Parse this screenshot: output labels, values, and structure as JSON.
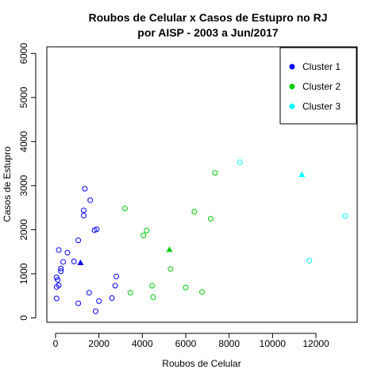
{
  "chart_data": {
    "type": "scatter",
    "title": [
      "Roubos de Celular x Casos de Estupro no RJ",
      "por AISP - 2003 a Jun/2017"
    ],
    "xlabel": "Roubos de Celular",
    "ylabel": "Casos de Estupro",
    "xlim": [
      -400,
      13900
    ],
    "ylim": [
      -100,
      6150
    ],
    "xticks": [
      0,
      2000,
      4000,
      6000,
      8000,
      10000,
      12000
    ],
    "yticks": [
      0,
      1000,
      2000,
      3000,
      4000,
      5000,
      6000
    ],
    "grid": false,
    "legend_position": "top-right",
    "series": [
      {
        "name": "Cluster 1",
        "color": "#0000ff",
        "points": [
          [
            1350,
            2930
          ],
          [
            1600,
            2670
          ],
          [
            1300,
            2440
          ],
          [
            1300,
            2320
          ],
          [
            1800,
            1990
          ],
          [
            1900,
            2010
          ],
          [
            1050,
            1760
          ],
          [
            150,
            1540
          ],
          [
            550,
            1480
          ],
          [
            350,
            1270
          ],
          [
            850,
            1280
          ],
          [
            250,
            1120
          ],
          [
            250,
            1060
          ],
          [
            50,
            920
          ],
          [
            100,
            860
          ],
          [
            2800,
            940
          ],
          [
            2750,
            730
          ],
          [
            150,
            740
          ],
          [
            50,
            700
          ],
          [
            1550,
            570
          ],
          [
            2600,
            450
          ],
          [
            50,
            440
          ],
          [
            2000,
            380
          ],
          [
            1050,
            330
          ],
          [
            1850,
            150
          ]
        ],
        "centroid": [
          1150,
          1250
        ]
      },
      {
        "name": "Cluster 2",
        "color": "#00cc00",
        "points": [
          [
            7350,
            3290
          ],
          [
            3200,
            2480
          ],
          [
            6400,
            2410
          ],
          [
            7150,
            2250
          ],
          [
            4200,
            1980
          ],
          [
            4050,
            1870
          ],
          [
            5300,
            1110
          ],
          [
            4450,
            730
          ],
          [
            6000,
            690
          ],
          [
            6750,
            590
          ],
          [
            3450,
            570
          ],
          [
            4500,
            470
          ]
        ],
        "centroid": [
          5250,
          1550
        ]
      },
      {
        "name": "Cluster 3",
        "color": "#00ffff",
        "points": [
          [
            8500,
            3530
          ],
          [
            13350,
            2310
          ],
          [
            11700,
            1300
          ]
        ],
        "centroid": [
          11350,
          3250
        ]
      }
    ]
  }
}
